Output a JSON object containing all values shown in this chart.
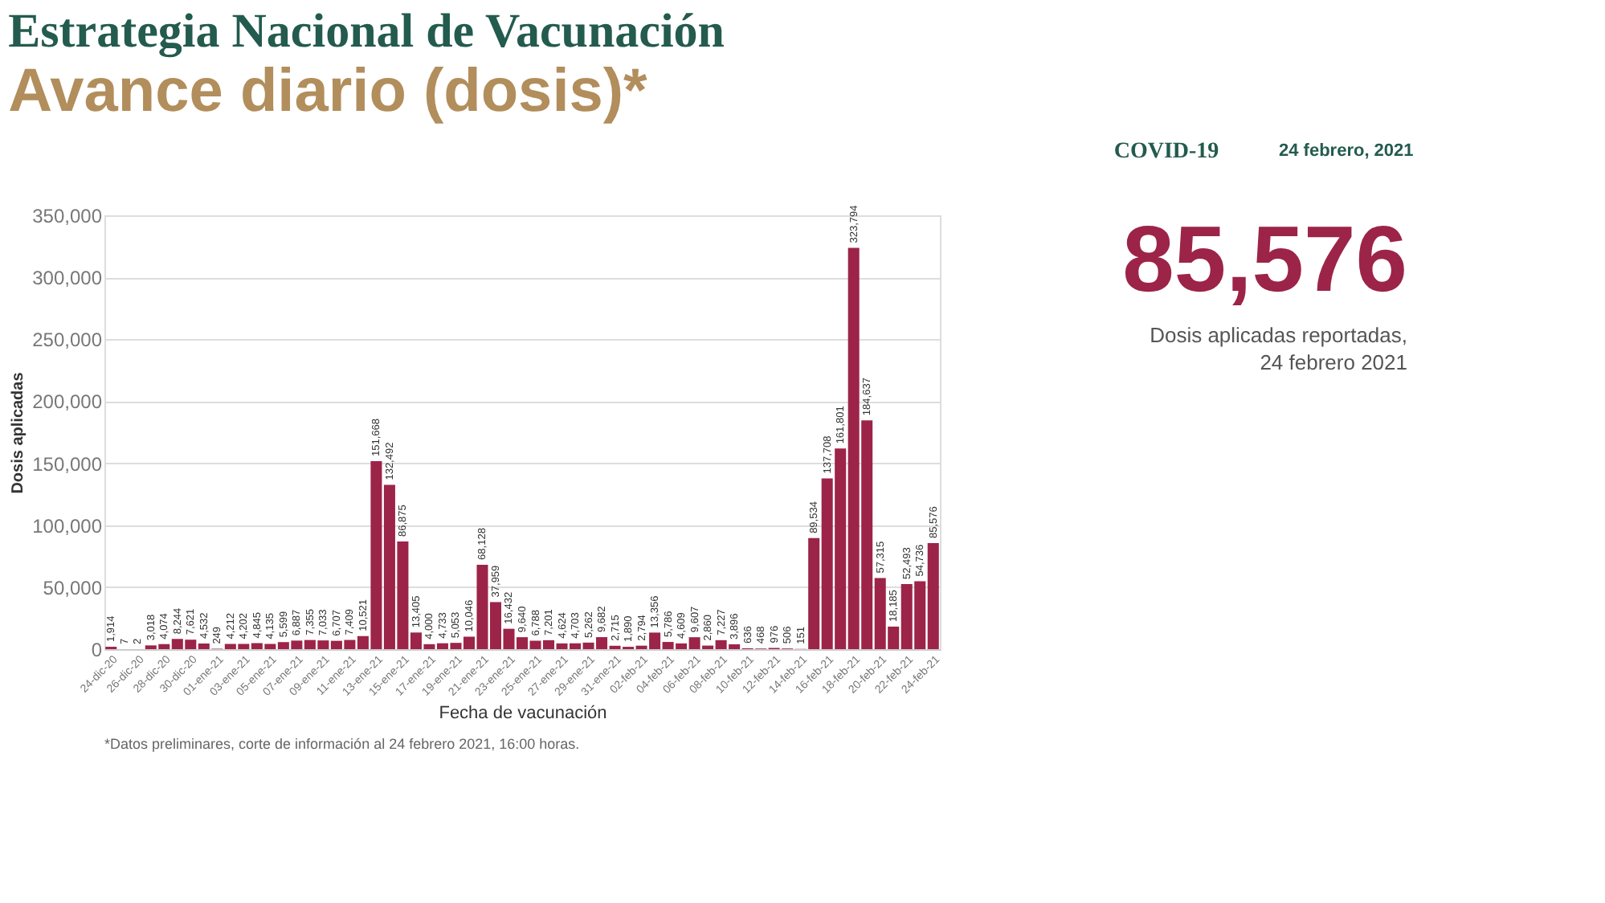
{
  "chart_data": {
    "type": "bar",
    "title": "Estrategia Nacional de Vacunación",
    "subtitle": "Avance diario (dosis)*",
    "xlabel": "Fecha de vacunación",
    "ylabel": "Dosis aplicadas",
    "categories": [
      "24-dic-20",
      null,
      "26-dic-20",
      null,
      "28-dic-20",
      null,
      "30-dic-20",
      null,
      "01-ene-21",
      null,
      "03-ene-21",
      null,
      "05-ene-21",
      null,
      "07-ene-21",
      null,
      "09-ene-21",
      null,
      "11-ene-21",
      null,
      "13-ene-21",
      null,
      "15-ene-21",
      null,
      "17-ene-21",
      null,
      "19-ene-21",
      null,
      "21-ene-21",
      null,
      "23-ene-21",
      null,
      "25-ene-21",
      null,
      "27-ene-21",
      null,
      "29-ene-21",
      null,
      "31-ene-21",
      null,
      "02-feb-21",
      null,
      "04-feb-21",
      null,
      "06-feb-21",
      null,
      "08-feb-21",
      null,
      "10-feb-21",
      null,
      "12-feb-21",
      null,
      "14-feb-21",
      null,
      "16-feb-21",
      null,
      "18-feb-21",
      null,
      "20-feb-21",
      null,
      "22-feb-21",
      null,
      "24-feb-21"
    ],
    "values": [
      1914,
      7,
      2,
      3018,
      4074,
      8244,
      7621,
      4532,
      249,
      4212,
      4202,
      4845,
      4135,
      5599,
      6887,
      7355,
      7033,
      6707,
      7409,
      10521,
      151668,
      132492,
      86875,
      13405,
      4000,
      4733,
      5053,
      10046,
      68128,
      37959,
      16432,
      9640,
      6788,
      7201,
      4624,
      4703,
      5262,
      9682,
      2715,
      1890,
      2794,
      13356,
      5786,
      4609,
      9607,
      2860,
      7227,
      3896,
      636,
      468,
      976,
      506,
      151,
      89534,
      137708,
      161801,
      323794,
      184637,
      57315,
      18185,
      52493,
      54736,
      85576
    ],
    "value_labels": [
      "1,914",
      "7",
      "2",
      "3,018",
      "4,074",
      "8,244",
      "7,621",
      "4,532",
      "249",
      "4,212",
      "4,202",
      "4,845",
      "4,135",
      "5,599",
      "6,887",
      "7,355",
      "7,033",
      "6,707",
      "7,409",
      "10,521",
      "151,668",
      "132,492",
      "86,875",
      "13,405",
      "4,000",
      "4,733",
      "5,053",
      "10,046",
      "68,128",
      "37,959",
      "16,432",
      "9,640",
      "6,788",
      "7,201",
      "4,624",
      "4,703",
      "5,262",
      "9,682",
      "2,715",
      "1,890",
      "2,794",
      "13,356",
      "5,786",
      "4,609",
      "9,607",
      "2,860",
      "7,227",
      "3,896",
      "636",
      "468",
      "976",
      "506",
      "151",
      "89,534",
      "137,708",
      "161,801",
      "323,794",
      "184,637",
      "57,315",
      "18,185",
      "52,493",
      "54,736",
      "85,576"
    ],
    "color": "#9d2449",
    "ylim": [
      0,
      350000
    ],
    "yticks": [
      0,
      {
        "value": 50000,
        "label": "50,000"
      },
      {
        "value": 100000,
        "label": "100,000"
      },
      {
        "value": 150000,
        "label": "150,000"
      },
      {
        "value": 200000,
        "label": "200,000"
      },
      {
        "value": 250000,
        "label": "250,000"
      },
      {
        "value": 300000,
        "label": "300,000"
      },
      {
        "value": 350000,
        "label": "350,000"
      }
    ],
    "grid": "y",
    "annotations": [
      "COVID-19",
      "24 febrero, 2021",
      "85,576",
      "Dosis aplicadas reportadas,",
      "24 febrero 2021",
      "*Datos preliminares, corte de información al 24 febrero 2021, 16:00 horas."
    ]
  }
}
